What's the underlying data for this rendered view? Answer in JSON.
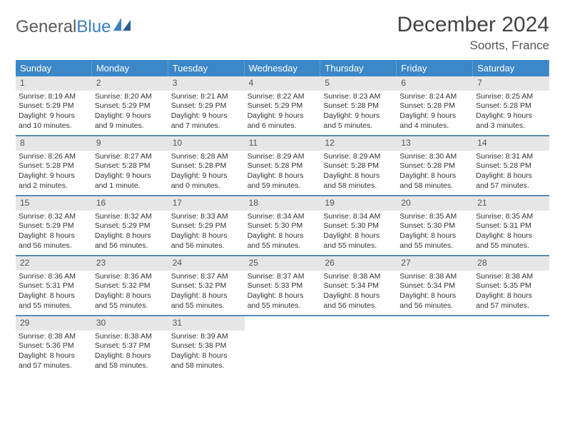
{
  "logo": {
    "text1": "General",
    "text2": "Blue"
  },
  "title": "December 2024",
  "location": "Soorts, France",
  "accent_color": "#3b87c8",
  "divider_color": "#5a8bb4",
  "daynum_bg": "#e6e6e6",
  "dow": [
    "Sunday",
    "Monday",
    "Tuesday",
    "Wednesday",
    "Thursday",
    "Friday",
    "Saturday"
  ],
  "weeks": [
    [
      {
        "n": "1",
        "sr": "8:19 AM",
        "ss": "5:29 PM",
        "dl": "9 hours and 10 minutes."
      },
      {
        "n": "2",
        "sr": "8:20 AM",
        "ss": "5:29 PM",
        "dl": "9 hours and 9 minutes."
      },
      {
        "n": "3",
        "sr": "8:21 AM",
        "ss": "5:29 PM",
        "dl": "9 hours and 7 minutes."
      },
      {
        "n": "4",
        "sr": "8:22 AM",
        "ss": "5:29 PM",
        "dl": "9 hours and 6 minutes."
      },
      {
        "n": "5",
        "sr": "8:23 AM",
        "ss": "5:28 PM",
        "dl": "9 hours and 5 minutes."
      },
      {
        "n": "6",
        "sr": "8:24 AM",
        "ss": "5:28 PM",
        "dl": "9 hours and 4 minutes."
      },
      {
        "n": "7",
        "sr": "8:25 AM",
        "ss": "5:28 PM",
        "dl": "9 hours and 3 minutes."
      }
    ],
    [
      {
        "n": "8",
        "sr": "8:26 AM",
        "ss": "5:28 PM",
        "dl": "9 hours and 2 minutes."
      },
      {
        "n": "9",
        "sr": "8:27 AM",
        "ss": "5:28 PM",
        "dl": "9 hours and 1 minute."
      },
      {
        "n": "10",
        "sr": "8:28 AM",
        "ss": "5:28 PM",
        "dl": "9 hours and 0 minutes."
      },
      {
        "n": "11",
        "sr": "8:29 AM",
        "ss": "5:28 PM",
        "dl": "8 hours and 59 minutes."
      },
      {
        "n": "12",
        "sr": "8:29 AM",
        "ss": "5:28 PM",
        "dl": "8 hours and 58 minutes."
      },
      {
        "n": "13",
        "sr": "8:30 AM",
        "ss": "5:28 PM",
        "dl": "8 hours and 58 minutes."
      },
      {
        "n": "14",
        "sr": "8:31 AM",
        "ss": "5:28 PM",
        "dl": "8 hours and 57 minutes."
      }
    ],
    [
      {
        "n": "15",
        "sr": "8:32 AM",
        "ss": "5:29 PM",
        "dl": "8 hours and 56 minutes."
      },
      {
        "n": "16",
        "sr": "8:32 AM",
        "ss": "5:29 PM",
        "dl": "8 hours and 56 minutes."
      },
      {
        "n": "17",
        "sr": "8:33 AM",
        "ss": "5:29 PM",
        "dl": "8 hours and 56 minutes."
      },
      {
        "n": "18",
        "sr": "8:34 AM",
        "ss": "5:30 PM",
        "dl": "8 hours and 55 minutes."
      },
      {
        "n": "19",
        "sr": "8:34 AM",
        "ss": "5:30 PM",
        "dl": "8 hours and 55 minutes."
      },
      {
        "n": "20",
        "sr": "8:35 AM",
        "ss": "5:30 PM",
        "dl": "8 hours and 55 minutes."
      },
      {
        "n": "21",
        "sr": "8:35 AM",
        "ss": "5:31 PM",
        "dl": "8 hours and 55 minutes."
      }
    ],
    [
      {
        "n": "22",
        "sr": "8:36 AM",
        "ss": "5:31 PM",
        "dl": "8 hours and 55 minutes."
      },
      {
        "n": "23",
        "sr": "8:36 AM",
        "ss": "5:32 PM",
        "dl": "8 hours and 55 minutes."
      },
      {
        "n": "24",
        "sr": "8:37 AM",
        "ss": "5:32 PM",
        "dl": "8 hours and 55 minutes."
      },
      {
        "n": "25",
        "sr": "8:37 AM",
        "ss": "5:33 PM",
        "dl": "8 hours and 55 minutes."
      },
      {
        "n": "26",
        "sr": "8:38 AM",
        "ss": "5:34 PM",
        "dl": "8 hours and 56 minutes."
      },
      {
        "n": "27",
        "sr": "8:38 AM",
        "ss": "5:34 PM",
        "dl": "8 hours and 56 minutes."
      },
      {
        "n": "28",
        "sr": "8:38 AM",
        "ss": "5:35 PM",
        "dl": "8 hours and 57 minutes."
      }
    ],
    [
      {
        "n": "29",
        "sr": "8:38 AM",
        "ss": "5:36 PM",
        "dl": "8 hours and 57 minutes."
      },
      {
        "n": "30",
        "sr": "8:38 AM",
        "ss": "5:37 PM",
        "dl": "8 hours and 58 minutes."
      },
      {
        "n": "31",
        "sr": "8:39 AM",
        "ss": "5:38 PM",
        "dl": "8 hours and 58 minutes."
      },
      {
        "empty": true
      },
      {
        "empty": true
      },
      {
        "empty": true
      },
      {
        "empty": true
      }
    ]
  ],
  "labels": {
    "sunrise": "Sunrise: ",
    "sunset": "Sunset: ",
    "daylight": "Daylight: "
  }
}
